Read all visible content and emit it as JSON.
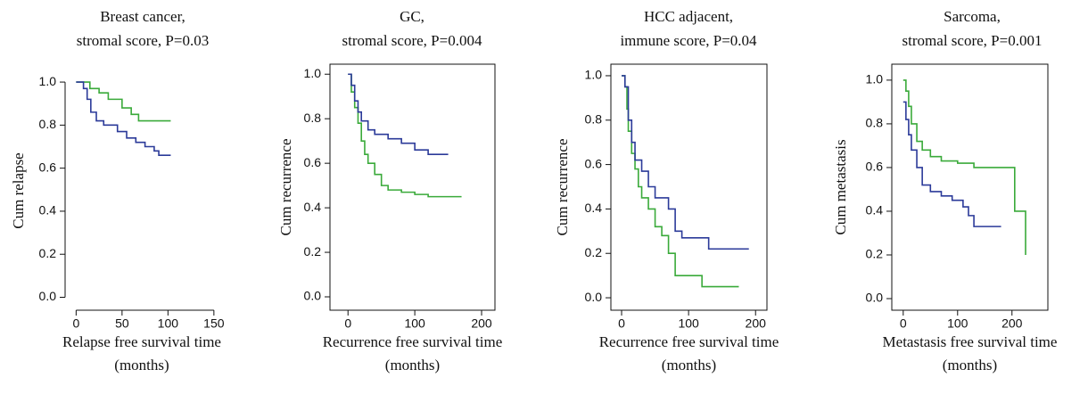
{
  "chart_data": [
    {
      "type": "step",
      "title": [
        "Breast cancer,",
        "stromal score, P=0.03"
      ],
      "x_label": [
        "Relapse free survival time",
        "(months)"
      ],
      "y_label": "Cum relapse",
      "box": false,
      "xlim": [
        -12,
        155
      ],
      "ylim": [
        -0.06,
        1.05
      ],
      "xticks": [
        0,
        50,
        100,
        150
      ],
      "yticks": [
        {
          "value": 0,
          "label": "0.0"
        },
        0.2,
        0.4,
        0.6,
        0.8,
        {
          "value": 1,
          "label": "1.0"
        }
      ],
      "series": [
        {
          "color": "#3aaa3a",
          "x": [
            0,
            10,
            15,
            25,
            35,
            50,
            60,
            68,
            103
          ],
          "values": [
            1.0,
            1.0,
            0.97,
            0.95,
            0.92,
            0.88,
            0.85,
            0.82,
            0.82
          ]
        },
        {
          "color": "#2b3a99",
          "x": [
            0,
            8,
            12,
            16,
            22,
            30,
            45,
            55,
            65,
            75,
            85,
            90,
            103
          ],
          "values": [
            1.0,
            0.97,
            0.92,
            0.86,
            0.82,
            0.8,
            0.77,
            0.74,
            0.72,
            0.7,
            0.68,
            0.66,
            0.66
          ]
        }
      ]
    },
    {
      "type": "step",
      "title": [
        "GC,",
        "stromal score, P=0.004"
      ],
      "x_label": [
        "Recurrence free survival time",
        "(months)"
      ],
      "y_label": "Cum recurrence",
      "box": true,
      "xlim": [
        -27,
        220
      ],
      "ylim": [
        -0.06,
        1.045
      ],
      "xticks": [
        0,
        100,
        200
      ],
      "yticks": [
        {
          "value": 0,
          "label": "0.0"
        },
        0.2,
        0.4,
        0.6,
        0.8,
        {
          "value": 1,
          "label": "1.0"
        }
      ],
      "series": [
        {
          "color": "#3aaa3a",
          "x": [
            0,
            5,
            10,
            15,
            20,
            25,
            30,
            40,
            50,
            60,
            80,
            100,
            120,
            170
          ],
          "values": [
            1.0,
            0.92,
            0.85,
            0.78,
            0.7,
            0.64,
            0.6,
            0.55,
            0.5,
            0.48,
            0.47,
            0.46,
            0.45,
            0.45
          ]
        },
        {
          "color": "#2b3a99",
          "x": [
            0,
            5,
            10,
            15,
            20,
            30,
            40,
            60,
            80,
            100,
            120,
            150
          ],
          "values": [
            1.0,
            0.95,
            0.88,
            0.83,
            0.79,
            0.75,
            0.73,
            0.71,
            0.69,
            0.66,
            0.64,
            0.64
          ]
        }
      ]
    },
    {
      "type": "step",
      "title": [
        "HCC adjacent,",
        "immune score, P=0.04"
      ],
      "x_label": [
        "Recurrence free survival time",
        "(months)"
      ],
      "y_label": "Cum recurrence",
      "box": true,
      "xlim": [
        -16,
        217
      ],
      "ylim": [
        -0.056,
        1.052
      ],
      "xticks": [
        0,
        100,
        200
      ],
      "yticks": [
        {
          "value": 0,
          "label": "0.0"
        },
        0.2,
        0.4,
        0.6,
        0.8,
        {
          "value": 1,
          "label": "1.0"
        }
      ],
      "series": [
        {
          "color": "#3aaa3a",
          "x": [
            0,
            5,
            8,
            10,
            15,
            20,
            25,
            30,
            40,
            50,
            60,
            70,
            80,
            100,
            120,
            175
          ],
          "values": [
            1.0,
            0.95,
            0.85,
            0.75,
            0.65,
            0.58,
            0.5,
            0.45,
            0.4,
            0.32,
            0.28,
            0.2,
            0.1,
            0.1,
            0.05,
            0.05
          ]
        },
        {
          "color": "#2b3a99",
          "x": [
            0,
            5,
            10,
            15,
            20,
            30,
            40,
            50,
            70,
            80,
            90,
            100,
            130,
            190
          ],
          "values": [
            1.0,
            0.95,
            0.8,
            0.7,
            0.62,
            0.57,
            0.5,
            0.45,
            0.4,
            0.3,
            0.27,
            0.27,
            0.22,
            0.22
          ]
        }
      ]
    },
    {
      "type": "step",
      "title": [
        "Sarcoma,",
        "stromal score, P=0.001"
      ],
      "x_label": [
        "Metastasis free survival time",
        "(months)"
      ],
      "y_label": "Cum metastasis",
      "box": true,
      "xlim": [
        -21,
        266
      ],
      "ylim": [
        -0.053,
        1.073
      ],
      "xticks": [
        0,
        100,
        200
      ],
      "yticks": [
        {
          "value": 0,
          "label": "0.0"
        },
        0.2,
        0.4,
        0.6,
        0.8,
        {
          "value": 1,
          "label": "1.0"
        }
      ],
      "series": [
        {
          "color": "#3aaa3a",
          "x": [
            0,
            5,
            10,
            15,
            25,
            35,
            50,
            70,
            100,
            130,
            200,
            205,
            220,
            225
          ],
          "values": [
            1.0,
            0.95,
            0.88,
            0.8,
            0.72,
            0.68,
            0.65,
            0.63,
            0.62,
            0.6,
            0.6,
            0.4,
            0.4,
            0.2
          ]
        },
        {
          "color": "#2b3a99",
          "x": [
            0,
            5,
            10,
            15,
            25,
            35,
            50,
            70,
            90,
            110,
            120,
            130,
            180
          ],
          "values": [
            0.9,
            0.82,
            0.75,
            0.68,
            0.6,
            0.52,
            0.49,
            0.47,
            0.45,
            0.42,
            0.38,
            0.33,
            0.33
          ]
        }
      ]
    }
  ]
}
